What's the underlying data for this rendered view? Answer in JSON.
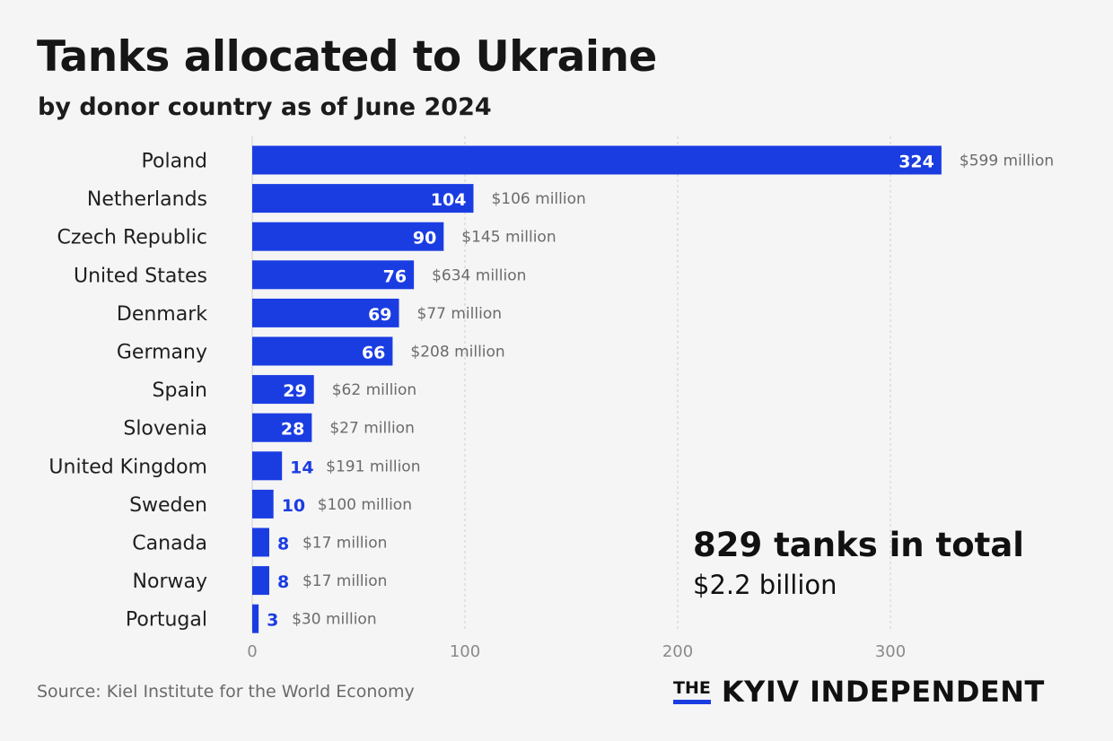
{
  "header": {
    "title": "Tanks allocated to Ukraine",
    "subtitle": "by donor country as of June 2024"
  },
  "chart_data": {
    "type": "bar",
    "orientation": "horizontal",
    "categories": [
      "Poland",
      "Netherlands",
      "Czech Republic",
      "United States",
      "Denmark",
      "Germany",
      "Spain",
      "Slovenia",
      "United Kingdom",
      "Sweden",
      "Canada",
      "Norway",
      "Portugal"
    ],
    "values": [
      324,
      104,
      90,
      76,
      69,
      66,
      29,
      28,
      14,
      10,
      8,
      8,
      3
    ],
    "annotations": [
      "$599 million",
      "$106 million",
      "$145 million",
      "$634 million",
      "$77 million",
      "$208 million",
      "$62 million",
      "$27 million",
      "$191 million",
      "$100 million",
      "$17 million",
      "$17 million",
      "$30 million"
    ],
    "xlim": [
      0,
      330
    ],
    "xticks": [
      0,
      100,
      200,
      300
    ],
    "grid": "vertical-dashed",
    "xlabel": "",
    "ylabel": "",
    "colors": {
      "bar": "#1a3de2",
      "label_inside": "#ffffff",
      "label_outside": "#1a3de2",
      "annotation": "#6b6b6b",
      "grid": "#cfcfcf"
    }
  },
  "summary": {
    "total": "829 tanks in total",
    "cost": "$2.2 billion"
  },
  "footer": {
    "source": "Source: Kiel Institute for the World Economy",
    "logo_the": "THE",
    "logo_name": "KYIV INDEPENDENT"
  }
}
